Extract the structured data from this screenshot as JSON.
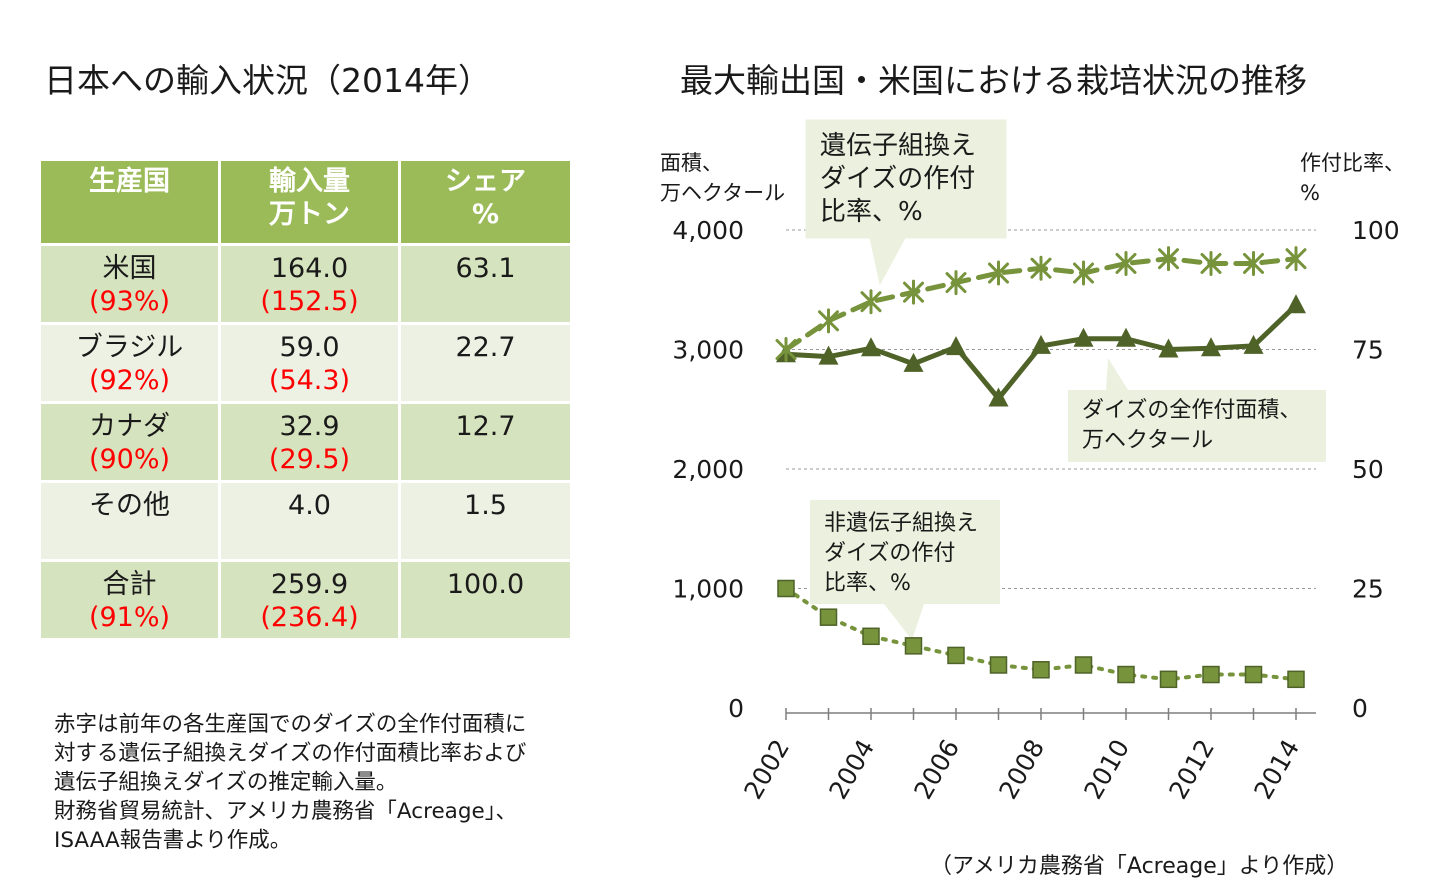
{
  "left_title": "日本への輸入状況（2014年）",
  "right_title": "最大輸出国・米国における栽培状況の推移",
  "table": {
    "headers": [
      {
        "line1": "生産国",
        "line2": ""
      },
      {
        "line1": "輸入量",
        "line2": "万トン"
      },
      {
        "line1": "シェア",
        "line2": "%"
      }
    ],
    "rows": [
      {
        "country": "米国",
        "country_sub": "(93%)",
        "amount": "164.0",
        "amount_sub": "(152.5)",
        "share": "63.1"
      },
      {
        "country": "ブラジル",
        "country_sub": "(92%)",
        "amount": "59.0",
        "amount_sub": "(54.3)",
        "share": "22.7"
      },
      {
        "country": "カナダ",
        "country_sub": "(90%)",
        "amount": "32.9",
        "amount_sub": "(29.5)",
        "share": "12.7"
      },
      {
        "country": "その他",
        "country_sub": "",
        "amount": "4.0",
        "amount_sub": "",
        "share": "1.5"
      },
      {
        "country": "合計",
        "country_sub": "(91%)",
        "amount": "259.9",
        "amount_sub": "(236.4)",
        "share": "100.0"
      }
    ],
    "colors": {
      "header": "#9bbb59",
      "row_dark": "#d6e3bf",
      "row_light": "#ecf1e4",
      "note_red": "#ff0000"
    }
  },
  "note": [
    "赤字は前年の各生産国でのダイズの全作付面積に",
    "対する遺伝子組換えダイズの作付面積比率および",
    "遺伝子組換えダイズの推定輸入量。",
    "財務省貿易統計、アメリカ農務省「Acreage」、",
    "ISAAA報告書より作成。"
  ],
  "source": "（アメリカ農務省「Acreage」より作成）",
  "chart_data": {
    "type": "line",
    "x": [
      2002,
      2003,
      2004,
      2005,
      2006,
      2007,
      2008,
      2009,
      2010,
      2011,
      2012,
      2013,
      2014
    ],
    "x_tick_labels": [
      "2002",
      "2004",
      "2006",
      "2008",
      "2010",
      "2012",
      "2014"
    ],
    "y_left": {
      "label_line1": "面積、",
      "label_line2": "万ヘクタール",
      "range": [
        0,
        4000
      ],
      "ticks": [
        "0",
        "1,000",
        "2,000",
        "3,000",
        "4,000"
      ]
    },
    "y_right": {
      "label_line1": "作付比率、",
      "label_line2": "%",
      "range": [
        0,
        100
      ],
      "ticks": [
        "0",
        "25",
        "50",
        "75",
        "100"
      ]
    },
    "grid": true,
    "series": [
      {
        "name": "ダイズの全作付面積、万ヘクタール",
        "axis": "left",
        "marker": "triangle",
        "style": "solid",
        "color": "#4f6228",
        "values": [
          2960,
          2940,
          3010,
          2880,
          3020,
          2590,
          3030,
          3090,
          3090,
          3000,
          3010,
          3030,
          3370
        ]
      },
      {
        "name": "遺伝子組換えダイズの作付比率、%",
        "axis": "right",
        "marker": "asterisk",
        "style": "dashed",
        "color": "#77933c",
        "values": [
          75,
          81,
          85,
          87,
          89,
          91,
          92,
          91,
          93,
          94,
          93,
          93,
          94
        ]
      },
      {
        "name": "非遺伝子組換えダイズの作付比率、%",
        "axis": "right",
        "marker": "square",
        "style": "dotted",
        "color": "#77933c",
        "values": [
          25,
          19,
          15,
          13,
          11,
          9,
          8,
          9,
          7,
          6,
          7,
          7,
          6
        ]
      }
    ],
    "callouts": [
      {
        "series": 1,
        "lines": [
          "遺伝子組換え",
          "ダイズの作付",
          "比率、%"
        ]
      },
      {
        "series": 0,
        "lines": [
          "ダイズの全作付面積、",
          "万ヘクタール"
        ]
      },
      {
        "series": 2,
        "lines": [
          "非遺伝子組換え",
          "ダイズの作付",
          "比率、%"
        ]
      }
    ]
  }
}
